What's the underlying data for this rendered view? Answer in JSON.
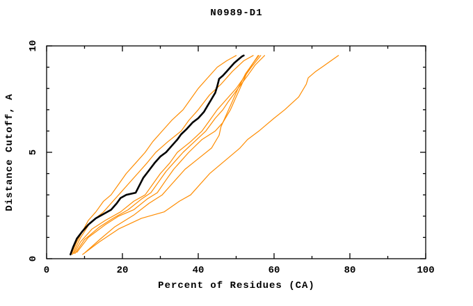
{
  "title": "N0989-D1",
  "colors": {
    "background": "#ffffff",
    "axis": "#000000",
    "highlight_curve": "#000000",
    "model_curve": "#ff8c00"
  },
  "chart_data": {
    "type": "line",
    "title": "N0989-D1",
    "xlabel": "Percent of Residues (CA)",
    "ylabel": "Distance Cutoff, A",
    "xlim": [
      0,
      100
    ],
    "ylim": [
      0,
      10
    ],
    "x_major_ticks": [
      0,
      20,
      40,
      60,
      80,
      100
    ],
    "x_minor_ticks": [
      10,
      30,
      50,
      70,
      90
    ],
    "y_major_ticks": [
      0,
      5,
      10
    ],
    "y_minor_ticks": [
      1,
      2,
      3,
      4,
      6,
      7,
      8,
      9
    ],
    "grid": false,
    "legend_position": "none",
    "frame": "full box with inward mirrored ticks",
    "series": [
      {
        "name": "orange-1",
        "color": "#ff8c00",
        "width": 1.2,
        "points": [
          [
            6.5,
            0.2
          ],
          [
            8,
            0.8
          ],
          [
            9.5,
            1.3
          ],
          [
            11,
            1.8
          ],
          [
            13,
            2.2
          ],
          [
            15,
            2.7
          ],
          [
            17,
            3.0
          ],
          [
            19,
            3.5
          ],
          [
            21,
            4.0
          ],
          [
            23.5,
            4.5
          ],
          [
            26,
            5.0
          ],
          [
            28,
            5.5
          ],
          [
            30.5,
            6.0
          ],
          [
            33,
            6.5
          ],
          [
            36,
            7.0
          ],
          [
            38,
            7.5
          ],
          [
            40,
            8.0
          ],
          [
            42.5,
            8.5
          ],
          [
            45,
            9.0
          ],
          [
            47.5,
            9.3
          ],
          [
            50,
            9.55
          ]
        ]
      },
      {
        "name": "orange-2",
        "color": "#ff8c00",
        "width": 1.2,
        "points": [
          [
            6.8,
            0.2
          ],
          [
            9,
            1.0
          ],
          [
            11.5,
            1.7
          ],
          [
            15,
            2.2
          ],
          [
            17,
            2.6
          ],
          [
            19,
            3.0
          ],
          [
            21.5,
            3.5
          ],
          [
            24,
            4.0
          ],
          [
            26.5,
            4.5
          ],
          [
            28.8,
            5.0
          ],
          [
            32,
            5.5
          ],
          [
            35.5,
            6.0
          ],
          [
            37.5,
            6.5
          ],
          [
            40,
            7.0
          ],
          [
            43,
            7.7
          ],
          [
            46,
            8.2
          ],
          [
            49,
            8.8
          ],
          [
            52,
            9.3
          ],
          [
            54.5,
            9.55
          ]
        ]
      },
      {
        "name": "orange-3",
        "color": "#ff8c00",
        "width": 1.2,
        "points": [
          [
            7.2,
            0.25
          ],
          [
            9,
            0.8
          ],
          [
            12,
            1.4
          ],
          [
            15.5,
            1.8
          ],
          [
            19.5,
            2.2
          ],
          [
            23,
            2.7
          ],
          [
            26,
            3.0
          ],
          [
            28,
            3.5
          ],
          [
            30,
            4.0
          ],
          [
            32.5,
            4.5
          ],
          [
            34.5,
            5.0
          ],
          [
            38,
            5.5
          ],
          [
            41,
            6.0
          ],
          [
            43,
            6.5
          ],
          [
            45,
            7.0
          ],
          [
            47.5,
            7.5
          ],
          [
            50,
            8.0
          ],
          [
            52,
            8.5
          ],
          [
            54,
            9.0
          ],
          [
            56.5,
            9.55
          ]
        ]
      },
      {
        "name": "orange-4",
        "color": "#ff8c00",
        "width": 1.2,
        "points": [
          [
            7.5,
            0.25
          ],
          [
            10,
            0.9
          ],
          [
            14,
            1.5
          ],
          [
            17.5,
            1.9
          ],
          [
            21.5,
            2.3
          ],
          [
            25,
            2.8
          ],
          [
            27.5,
            3.1
          ],
          [
            29.5,
            3.6
          ],
          [
            31.5,
            4.1
          ],
          [
            34,
            4.6
          ],
          [
            36,
            5.0
          ],
          [
            39,
            5.5
          ],
          [
            42,
            6.0
          ],
          [
            44.5,
            6.6
          ],
          [
            46.5,
            7.0
          ],
          [
            48,
            7.4
          ],
          [
            50.5,
            8.0
          ],
          [
            53,
            8.6
          ],
          [
            55,
            9.1
          ],
          [
            57.5,
            9.55
          ]
        ]
      },
      {
        "name": "orange-5",
        "color": "#ff8c00",
        "width": 1.2,
        "points": [
          [
            8,
            0.3
          ],
          [
            11,
            1.0
          ],
          [
            15.5,
            1.6
          ],
          [
            19,
            2.0
          ],
          [
            23,
            2.3
          ],
          [
            26.5,
            2.8
          ],
          [
            29.2,
            3.1
          ],
          [
            31.5,
            3.7
          ],
          [
            33.5,
            4.2
          ],
          [
            35.5,
            4.6
          ],
          [
            37.5,
            5.0
          ],
          [
            41,
            5.6
          ],
          [
            44.5,
            6.0
          ],
          [
            46.5,
            6.4
          ],
          [
            48.5,
            7.0
          ],
          [
            50,
            7.6
          ],
          [
            51.5,
            8.2
          ],
          [
            53,
            8.8
          ],
          [
            54.5,
            9.2
          ],
          [
            55.8,
            9.55
          ]
        ]
      },
      {
        "name": "orange-6",
        "color": "#ff8c00",
        "width": 1.2,
        "points": [
          [
            10.2,
            0.3
          ],
          [
            14,
            0.9
          ],
          [
            18,
            1.5
          ],
          [
            23,
            2.05
          ],
          [
            27,
            2.6
          ],
          [
            30.5,
            3.0
          ],
          [
            33,
            3.5
          ],
          [
            36.5,
            4.2
          ],
          [
            40,
            4.7
          ],
          [
            43.5,
            5.2
          ],
          [
            45.5,
            5.8
          ],
          [
            46,
            6.2
          ],
          [
            47.5,
            6.8
          ],
          [
            49,
            7.4
          ],
          [
            50.5,
            8.0
          ],
          [
            52.5,
            8.7
          ],
          [
            54.5,
            9.2
          ],
          [
            56,
            9.55
          ]
        ]
      },
      {
        "name": "orange-7-outlier",
        "color": "#ff8c00",
        "width": 1.2,
        "points": [
          [
            9.5,
            0.2
          ],
          [
            14,
            0.8
          ],
          [
            19,
            1.4
          ],
          [
            25,
            1.9
          ],
          [
            31,
            2.2
          ],
          [
            35,
            2.7
          ],
          [
            38,
            3.0
          ],
          [
            43,
            4.0
          ],
          [
            48,
            4.75
          ],
          [
            51,
            5.2
          ],
          [
            53,
            5.6
          ],
          [
            56,
            6.0
          ],
          [
            58,
            6.3
          ],
          [
            60,
            6.6
          ],
          [
            62.8,
            7.0
          ],
          [
            66.5,
            7.6
          ],
          [
            68.5,
            8.2
          ],
          [
            69,
            8.5
          ],
          [
            71,
            8.8
          ],
          [
            73,
            9.05
          ],
          [
            75,
            9.3
          ],
          [
            77,
            9.55
          ]
        ]
      },
      {
        "name": "black-main",
        "color": "#000000",
        "width": 2.6,
        "points": [
          [
            6.3,
            0.2
          ],
          [
            7,
            0.55
          ],
          [
            8,
            0.95
          ],
          [
            9.5,
            1.3
          ],
          [
            11,
            1.6
          ],
          [
            13,
            1.9
          ],
          [
            15,
            2.1
          ],
          [
            17,
            2.3
          ],
          [
            18.5,
            2.6
          ],
          [
            19.5,
            2.85
          ],
          [
            21,
            3.0
          ],
          [
            23.5,
            3.1
          ],
          [
            24.5,
            3.45
          ],
          [
            25.5,
            3.8
          ],
          [
            27,
            4.15
          ],
          [
            28.5,
            4.5
          ],
          [
            30,
            4.8
          ],
          [
            31.5,
            5.0
          ],
          [
            33,
            5.3
          ],
          [
            34.5,
            5.6
          ],
          [
            35.5,
            5.85
          ],
          [
            37,
            6.1
          ],
          [
            38.5,
            6.4
          ],
          [
            40,
            6.6
          ],
          [
            41.5,
            6.9
          ],
          [
            42.5,
            7.2
          ],
          [
            43.5,
            7.5
          ],
          [
            44.5,
            7.8
          ],
          [
            45,
            8.1
          ],
          [
            45.5,
            8.45
          ],
          [
            46.5,
            8.6
          ],
          [
            47.5,
            8.8
          ],
          [
            48.5,
            9.0
          ],
          [
            49.5,
            9.2
          ],
          [
            50.5,
            9.35
          ],
          [
            51.5,
            9.5
          ],
          [
            52,
            9.55
          ]
        ]
      }
    ]
  }
}
